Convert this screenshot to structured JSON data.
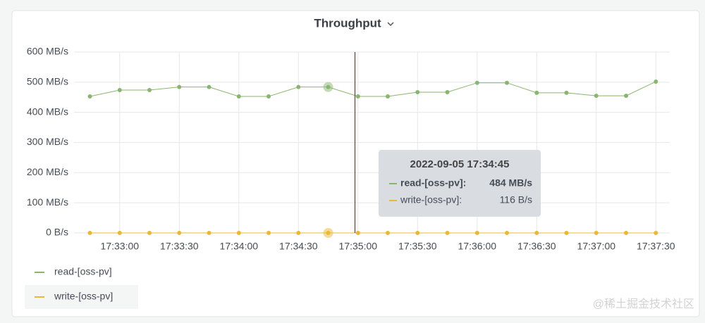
{
  "chart_data": {
    "type": "line",
    "title": "Throughput",
    "x": [
      "17:32:45",
      "17:33:00",
      "17:33:15",
      "17:33:30",
      "17:33:45",
      "17:34:00",
      "17:34:15",
      "17:34:30",
      "17:34:45",
      "17:35:00",
      "17:35:15",
      "17:35:30",
      "17:35:45",
      "17:36:00",
      "17:36:15",
      "17:36:30",
      "17:36:45",
      "17:37:00",
      "17:37:15",
      "17:37:30"
    ],
    "xlim": [
      "17:32:37",
      "17:37:37"
    ],
    "xticks": [
      "17:33:00",
      "17:33:30",
      "17:34:00",
      "17:34:30",
      "17:35:00",
      "17:35:30",
      "17:36:00",
      "17:36:30",
      "17:37:00",
      "17:37:30"
    ],
    "ylim": [
      0,
      600
    ],
    "yticks": [
      {
        "value": 0,
        "label": "0 B/s"
      },
      {
        "value": 100,
        "label": "100 MB/s"
      },
      {
        "value": 200,
        "label": "200 MB/s"
      },
      {
        "value": 300,
        "label": "300 MB/s"
      },
      {
        "value": 400,
        "label": "400 MB/s"
      },
      {
        "value": 500,
        "label": "500 MB/s"
      },
      {
        "value": 600,
        "label": "600 MB/s"
      }
    ],
    "grid": true,
    "series": [
      {
        "name": "read-[oss-pv]",
        "color": "#8ab56f",
        "values": [
          453,
          474,
          474,
          484,
          484,
          453,
          453,
          484,
          484,
          453,
          453,
          467,
          467,
          498,
          498,
          465,
          465,
          455,
          455,
          502
        ]
      },
      {
        "name": "write-[oss-pv]",
        "color": "#eab839",
        "values": [
          0.000116,
          0.000116,
          0.000116,
          0.000116,
          0.000116,
          0.000116,
          0.000116,
          0.000116,
          0.000116,
          0.000116,
          0.000116,
          0.000116,
          0.000116,
          0.000116,
          0.000116,
          0.000116,
          0.000116,
          0.000116,
          0.000116,
          0.000116
        ]
      }
    ],
    "hover_index": 8,
    "tooltip": {
      "title": "2022-09-05 17:34:45",
      "rows": [
        {
          "name": "read-[oss-pv]:",
          "value": 484,
          "label": "484 MB/s"
        },
        {
          "name": "write-[oss-pv]:",
          "value": 0.000116,
          "label": "116 B/s"
        }
      ]
    }
  },
  "watermark": "@稀土掘金技术社区"
}
